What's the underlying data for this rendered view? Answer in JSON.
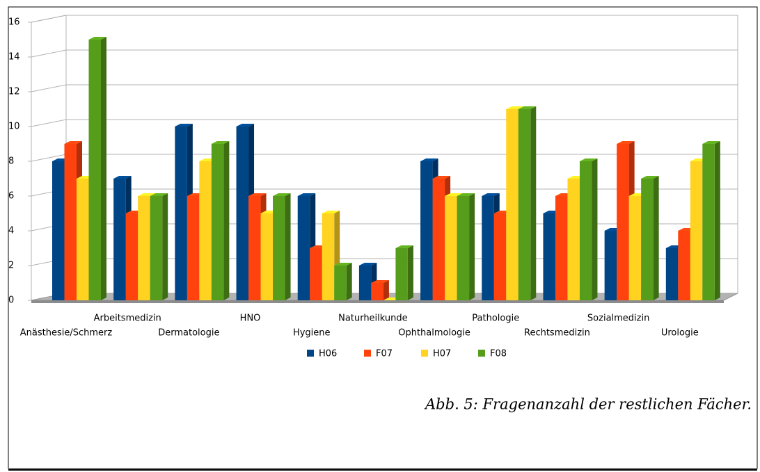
{
  "chart_data": {
    "type": "bar3d",
    "categories": [
      "Anästhesie/Schmerz",
      "Arbeitsmedizin",
      "Dermatologie",
      "HNO",
      "Hygiene",
      "Naturheilkunde",
      "Ophthalmologie",
      "Pathologie",
      "Rechtsmedizin",
      "Sozialmedizin",
      "Urologie"
    ],
    "series": [
      {
        "name": "H06",
        "color": "#004586",
        "values": [
          8,
          7,
          10,
          10,
          6,
          2,
          8,
          6,
          5,
          4,
          3
        ]
      },
      {
        "name": "F07",
        "color": "#ff420e",
        "values": [
          9,
          5,
          6,
          6,
          3,
          1,
          7,
          5,
          6,
          9,
          4
        ]
      },
      {
        "name": "H07",
        "color": "#ffd320",
        "values": [
          7,
          6,
          8,
          5,
          5,
          0,
          6,
          11,
          7,
          6,
          8
        ]
      },
      {
        "name": "F08",
        "color": "#579d1c",
        "values": [
          15,
          6,
          9,
          6,
          2,
          3,
          6,
          11,
          8,
          7,
          9
        ]
      }
    ],
    "ylim": [
      0,
      16
    ],
    "yticks": [
      0,
      2,
      4,
      6,
      8,
      10,
      12,
      14,
      16
    ],
    "grid": true,
    "legend": "bottom",
    "caption": "Abb. 5: Fragenanzahl der restlichen Fächer."
  }
}
